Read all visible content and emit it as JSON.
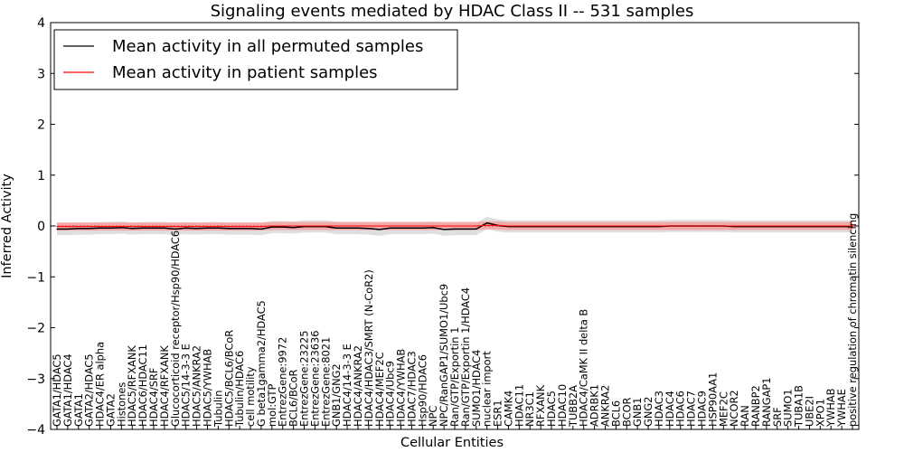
{
  "chart_data": {
    "type": "line",
    "title": "Signaling events mediated by HDAC Class II -- 531 samples",
    "xlabel": "Cellular Entities",
    "ylabel": "Inferred Activity",
    "ylim": [
      -4,
      4
    ],
    "yticks": [
      -4,
      -3,
      -2,
      -1,
      0,
      1,
      2,
      3,
      4
    ],
    "ytick_labels": [
      "−4",
      "−3",
      "−2",
      "−1",
      "0",
      "1",
      "2",
      "3",
      "4"
    ],
    "legend_position": "top-left",
    "categories": [
      "GATA1/HDAC5",
      "GATA1/HDAC4",
      "GATA1",
      "GATA2/HDAC5",
      "HDAC4/ER alpha",
      "GATA2",
      "Histones",
      "HDAC5/RFXANK",
      "HDAC6/HDAC11",
      "HDAC4/SRF",
      "HDAC4/RFXANK",
      "Glucocorticoid receptor/Hsp90/HDAC6",
      "HDAC5/14-3-3 E",
      "HDAC5/ANKRA2",
      "HDAC5/YWHAB",
      "Tubulin",
      "HDAC5/BCL6/BCoR",
      "Tubulin/HDAC6",
      "cell motility",
      "G beta1gamma2/HDAC5",
      "mol:GTP",
      "EntrezGene:9972",
      "BCL6/BCoR",
      "EntrezGene:23225",
      "EntrezGene:23636",
      "EntrezGene:8021",
      "GNB1/GNG2",
      "HDAC4/14-3-3 E",
      "HDAC4/ANKRA2",
      "HDAC4/HDAC3/SMRT (N-CoR2)",
      "HDAC4/MEF2C",
      "HDAC4/Ubc9",
      "HDAC4/YWHAB",
      "HDAC7/HDAC3",
      "Hsp90/HDAC6",
      "NPC",
      "NPC/RanGAP1/SUMO1/Ubc9",
      "Ran/GTP/Exportin 1",
      "Ran/GTP/Exportin 1/HDAC4",
      "SUMO1/HDAC4",
      "nuclear import",
      "ESR1",
      "CAMK4",
      "HDAC11",
      "NR3C1",
      "RFXANK",
      "HDAC5",
      "HDAC10",
      "TUBB2A",
      "HDAC4/CaMK II delta B",
      "ADRBK1",
      "ANKRA2",
      "BCL6",
      "BCOR",
      "GNB1",
      "GNG2",
      "HDAC3",
      "HDAC4",
      "HDAC6",
      "HDAC7",
      "HDAC9",
      "HSP90AA1",
      "MEF2C",
      "NCOR2",
      "RAN",
      "RANBP2",
      "RANGAP1",
      "SRF",
      "SUMO1",
      "TUBA1B",
      "UBE2I",
      "XPO1",
      "YWHAB",
      "YWHAE",
      "positive regulation of chromatin silencing"
    ],
    "series": [
      {
        "name": "Mean activity in all permuted samples",
        "color": "#000000",
        "values": [
          -0.06,
          -0.06,
          -0.05,
          -0.05,
          -0.04,
          -0.04,
          -0.03,
          -0.05,
          -0.04,
          -0.04,
          -0.04,
          -0.06,
          -0.04,
          -0.05,
          -0.04,
          -0.04,
          -0.05,
          -0.05,
          -0.05,
          -0.06,
          -0.02,
          -0.02,
          -0.03,
          -0.01,
          -0.01,
          -0.01,
          -0.04,
          -0.04,
          -0.04,
          -0.05,
          -0.07,
          -0.04,
          -0.04,
          -0.04,
          -0.04,
          -0.03,
          -0.07,
          -0.06,
          -0.06,
          -0.06,
          0.06,
          0.01,
          -0.01,
          -0.01,
          -0.01,
          -0.01,
          -0.01,
          -0.01,
          -0.01,
          -0.01,
          -0.01,
          -0.01,
          -0.01,
          -0.01,
          -0.01,
          -0.01,
          -0.01,
          0.0,
          0.0,
          0.0,
          0.0,
          0.0,
          0.0,
          -0.01,
          -0.01,
          -0.01,
          -0.01,
          -0.01,
          -0.01,
          -0.01,
          -0.01,
          -0.01,
          -0.01,
          -0.01,
          -0.01
        ],
        "band": 0.12,
        "band_color": "#d9d9d9"
      },
      {
        "name": "Mean activity in patient samples",
        "color": "#ff0000",
        "values": [
          -0.01,
          -0.01,
          -0.01,
          -0.01,
          -0.01,
          -0.01,
          -0.01,
          -0.01,
          -0.01,
          -0.01,
          -0.01,
          -0.01,
          -0.01,
          -0.01,
          -0.01,
          -0.01,
          -0.01,
          -0.01,
          -0.01,
          -0.01,
          0.0,
          0.0,
          0.0,
          0.0,
          0.0,
          0.0,
          0.0,
          0.0,
          0.0,
          0.0,
          0.0,
          0.0,
          0.0,
          0.0,
          0.0,
          0.0,
          0.0,
          0.0,
          0.0,
          0.0,
          0.01,
          0.01,
          0.0,
          0.0,
          0.0,
          0.0,
          0.0,
          0.0,
          0.0,
          0.0,
          0.0,
          0.0,
          0.0,
          0.0,
          0.0,
          0.0,
          0.0,
          0.0,
          0.0,
          0.0,
          0.0,
          0.0,
          0.0,
          0.0,
          0.0,
          0.0,
          0.0,
          0.0,
          0.0,
          0.0,
          0.0,
          0.0,
          0.0,
          0.0,
          0.0
        ],
        "band": 0.08,
        "band_color": "#f4a0a0"
      }
    ]
  }
}
